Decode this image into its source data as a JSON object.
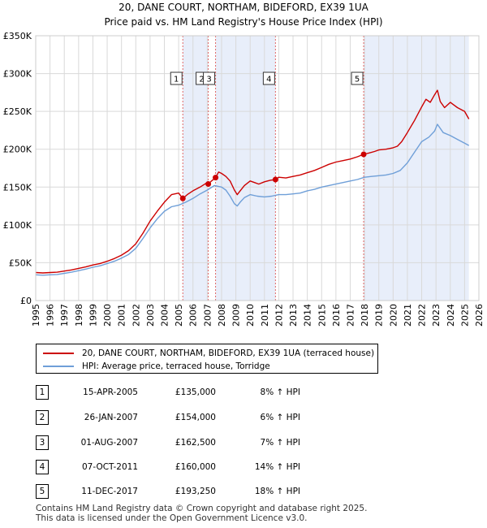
{
  "title_line1": "20, DANE COURT, NORTHAM, BIDEFORD, EX39 1UA",
  "title_line2": "Price paid vs. HM Land Registry's House Price Index (HPI)",
  "legend": {
    "red_label": "20, DANE COURT, NORTHAM, BIDEFORD, EX39 1UA (terraced house)",
    "blue_label": "HPI: Average price, terraced house, Torridge"
  },
  "transactions": [
    {
      "num": "1",
      "date": "15-APR-2005",
      "price": "£135,000",
      "hpi": "8% ↑ HPI"
    },
    {
      "num": "2",
      "date": "26-JAN-2007",
      "price": "£154,000",
      "hpi": "6% ↑ HPI"
    },
    {
      "num": "3",
      "date": "01-AUG-2007",
      "price": "£162,500",
      "hpi": "7% ↑ HPI"
    },
    {
      "num": "4",
      "date": "07-OCT-2011",
      "price": "£160,000",
      "hpi": "14% ↑ HPI"
    },
    {
      "num": "5",
      "date": "11-DEC-2017",
      "price": "£193,250",
      "hpi": "18% ↑ HPI"
    }
  ],
  "footer_line1": "Contains HM Land Registry data © Crown copyright and database right 2025.",
  "footer_line2": "This data is licensed under the Open Government Licence v3.0.",
  "colors": {
    "red": "#cc0000",
    "blue": "#6f9fd8",
    "shade": "#e8eefa",
    "grid": "#d9d9d9"
  },
  "chart_data": {
    "type": "line",
    "title": "20, DANE COURT, NORTHAM, BIDEFORD, EX39 1UA",
    "subtitle": "Price paid vs. HM Land Registry's House Price Index (HPI)",
    "xlim": [
      1995,
      2026
    ],
    "ylim": [
      0,
      350000
    ],
    "y_ticks": [
      0,
      50000,
      100000,
      150000,
      200000,
      250000,
      300000,
      350000
    ],
    "y_tick_labels": [
      "£0",
      "£50K",
      "£100K",
      "£150K",
      "£200K",
      "£250K",
      "£300K",
      "£350K"
    ],
    "x_ticks": [
      "1995",
      "1996",
      "1997",
      "1998",
      "1999",
      "2000",
      "2001",
      "2002",
      "2003",
      "2004",
      "2005",
      "2006",
      "2007",
      "2008",
      "2009",
      "2010",
      "2011",
      "2012",
      "2013",
      "2014",
      "2015",
      "2016",
      "2017",
      "2018",
      "2019",
      "2020",
      "2021",
      "2022",
      "2023",
      "2024",
      "2025",
      "2026"
    ],
    "shaded_ranges": [
      [
        2005.29,
        2007.07
      ],
      [
        2007.58,
        2011.77
      ],
      [
        2017.94,
        2025.3
      ]
    ],
    "sales": [
      {
        "label": "1",
        "x": 2005.29,
        "y": 135000
      },
      {
        "label": "2",
        "x": 2007.07,
        "y": 154000
      },
      {
        "label": "3",
        "x": 2007.58,
        "y": 162500
      },
      {
        "label": "4",
        "x": 2011.77,
        "y": 160000
      },
      {
        "label": "5",
        "x": 2017.94,
        "y": 193250
      }
    ],
    "series": [
      {
        "name": "20, DANE COURT, NORTHAM, BIDEFORD, EX39 1UA (terraced house)",
        "color": "#cc0000",
        "x": [
          1995,
          1995.5,
          1996,
          1996.5,
          1997,
          1997.5,
          1998,
          1998.5,
          1999,
          1999.5,
          2000,
          2000.5,
          2001,
          2001.5,
          2002,
          2002.5,
          2003,
          2003.5,
          2004,
          2004.5,
          2005,
          2005.29,
          2005.6,
          2006,
          2006.5,
          2007,
          2007.07,
          2007.3,
          2007.58,
          2007.8,
          2008,
          2008.3,
          2008.6,
          2008.9,
          2009.1,
          2009.3,
          2009.6,
          2010,
          2010.3,
          2010.6,
          2011,
          2011.4,
          2011.77,
          2012,
          2012.5,
          2013,
          2013.5,
          2014,
          2014.5,
          2015,
          2015.5,
          2016,
          2016.5,
          2017,
          2017.5,
          2017.94,
          2018.3,
          2018.7,
          2019,
          2019.5,
          2020,
          2020.3,
          2020.6,
          2021,
          2021.5,
          2022,
          2022.3,
          2022.6,
          2022.9,
          2023.1,
          2023.3,
          2023.6,
          2024,
          2024.5,
          2025,
          2025.3
        ],
        "y": [
          37000,
          36500,
          37000,
          37500,
          39000,
          40500,
          42500,
          44500,
          47000,
          49000,
          52000,
          55500,
          60000,
          66000,
          75000,
          89000,
          105000,
          118000,
          130000,
          140000,
          142000,
          135000,
          140000,
          145000,
          150000,
          156000,
          154000,
          158000,
          162500,
          170000,
          168000,
          164000,
          158000,
          146000,
          140000,
          145000,
          152000,
          158000,
          156000,
          154000,
          157000,
          159000,
          160000,
          163000,
          162000,
          164000,
          166000,
          169000,
          172000,
          176000,
          180000,
          183000,
          185000,
          187000,
          190000,
          193250,
          195000,
          197000,
          199000,
          200000,
          202000,
          204000,
          210000,
          222000,
          238000,
          256000,
          266000,
          262000,
          272000,
          278000,
          263000,
          255000,
          262000,
          255000,
          250000,
          240000
        ]
      },
      {
        "name": "HPI: Average price, terraced house, Torridge",
        "color": "#6f9fd8",
        "x": [
          1995,
          1995.5,
          1996,
          1996.5,
          1997,
          1997.5,
          1998,
          1998.5,
          1999,
          1999.5,
          2000,
          2000.5,
          2001,
          2001.5,
          2002,
          2002.5,
          2003,
          2003.5,
          2004,
          2004.5,
          2005,
          2005.5,
          2006,
          2006.5,
          2007,
          2007.5,
          2008,
          2008.3,
          2008.6,
          2008.9,
          2009.1,
          2009.3,
          2009.6,
          2010,
          2010.5,
          2011,
          2011.5,
          2012,
          2012.5,
          2013,
          2013.5,
          2014,
          2014.5,
          2015,
          2015.5,
          2016,
          2016.5,
          2017,
          2017.5,
          2018,
          2018.5,
          2019,
          2019.5,
          2020,
          2020.5,
          2021,
          2021.5,
          2022,
          2022.5,
          2022.9,
          2023.1,
          2023.5,
          2024,
          2024.5,
          2025,
          2025.3
        ],
        "y": [
          34000,
          33500,
          34000,
          34500,
          36000,
          37500,
          39500,
          41500,
          44000,
          46000,
          49000,
          52000,
          56000,
          61000,
          69000,
          82000,
          96000,
          108000,
          118000,
          124000,
          126000,
          130000,
          135000,
          141000,
          146000,
          152000,
          150000,
          146000,
          138000,
          128000,
          125000,
          130000,
          136000,
          140000,
          138000,
          137000,
          138000,
          140000,
          140000,
          141000,
          142000,
          145000,
          147000,
          150000,
          152000,
          154000,
          156000,
          158000,
          160000,
          163000,
          164000,
          165000,
          166000,
          168000,
          172000,
          182000,
          196000,
          210000,
          216000,
          224000,
          233000,
          222000,
          218000,
          213000,
          208000,
          205000
        ]
      }
    ]
  }
}
